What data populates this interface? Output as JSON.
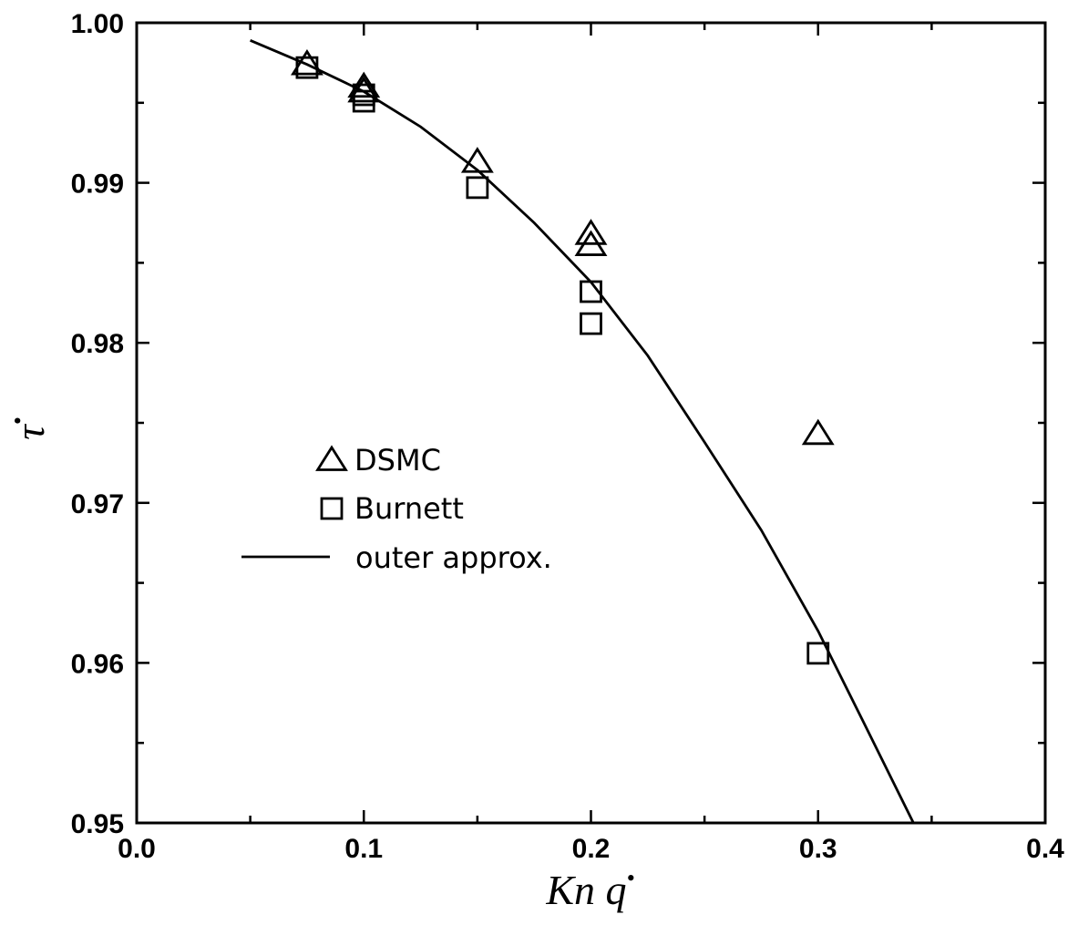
{
  "chart_data": {
    "type": "scatter",
    "title": "",
    "xlabel": "Kn q",
    "xlabel_superscript": "•",
    "ylabel": "τ",
    "ylabel_superscript": "•",
    "xlim": [
      0.0,
      0.4
    ],
    "ylim": [
      0.95,
      1.0
    ],
    "xticks": [
      0.0,
      0.1,
      0.2,
      0.3,
      0.4
    ],
    "xtick_labels": [
      "0.0",
      "0.1",
      "0.2",
      "0.3",
      "0.4"
    ],
    "yticks": [
      0.95,
      0.96,
      0.97,
      0.98,
      0.99,
      1.0
    ],
    "ytick_labels": [
      "0.95",
      "0.96",
      "0.97",
      "0.98",
      "0.99",
      "1.00"
    ],
    "grid": false,
    "legend_position": "center-left",
    "series": [
      {
        "name": "DSMC",
        "marker": "triangle",
        "x": [
          0.075,
          0.1,
          0.1,
          0.15,
          0.2,
          0.2,
          0.3
        ],
        "y": [
          0.9974,
          0.996,
          0.9957,
          0.9913,
          0.9868,
          0.9861,
          0.9743
        ]
      },
      {
        "name": "Burnett",
        "marker": "square",
        "x": [
          0.075,
          0.1,
          0.1,
          0.15,
          0.2,
          0.2,
          0.3
        ],
        "y": [
          0.9972,
          0.9955,
          0.9951,
          0.9897,
          0.9832,
          0.9812,
          0.9606
        ]
      },
      {
        "name": "outer approx.",
        "marker": "line",
        "x": [
          0.05,
          0.075,
          0.1,
          0.125,
          0.15,
          0.175,
          0.2,
          0.225,
          0.25,
          0.275,
          0.3,
          0.32,
          0.342
        ],
        "y": [
          0.9989,
          0.9974,
          0.9957,
          0.9935,
          0.9908,
          0.9875,
          0.9838,
          0.9792,
          0.9738,
          0.9683,
          0.962,
          0.9563,
          0.95
        ]
      }
    ]
  }
}
